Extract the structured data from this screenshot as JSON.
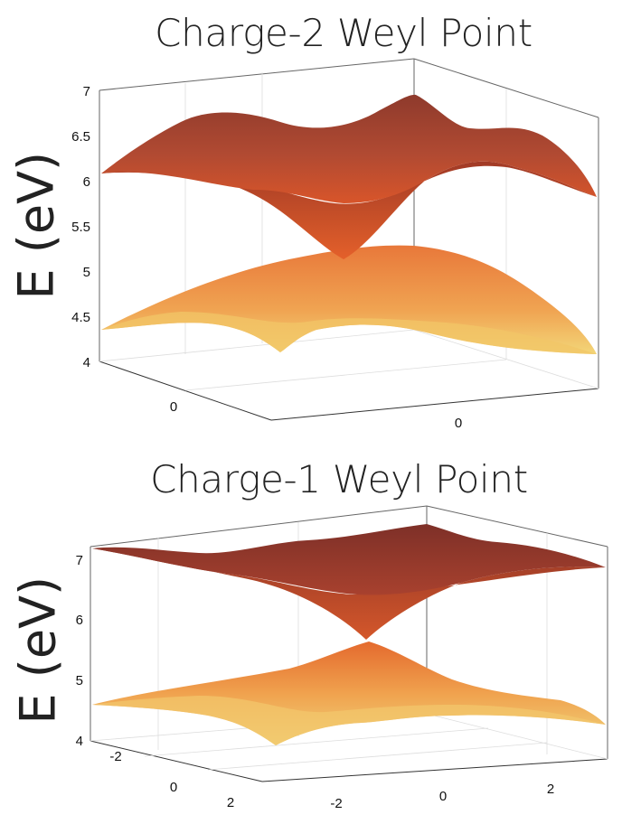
{
  "chart_data": [
    {
      "type": "surface",
      "title": "Charge-2 Weyl Point",
      "zlabel": "E (eV)",
      "zlim": [
        4,
        7
      ],
      "zticks": [
        "7",
        "6.5",
        "6",
        "5.5",
        "5",
        "4.5",
        "4"
      ],
      "xticks": [
        "0"
      ],
      "yticks": [
        "0"
      ],
      "grid": true,
      "series": [
        {
          "band": "upper",
          "color_top": "#8e3a2c",
          "color_bottom": "#d8552a"
        },
        {
          "band": "lower",
          "color_top": "#e8783a",
          "color_bottom": "#f3d678"
        }
      ],
      "node_energy": 5.15
    },
    {
      "type": "surface",
      "title": "Charge-1 Weyl Point",
      "zlabel": "E (eV)",
      "zlim": [
        4,
        7.3
      ],
      "zticks": [
        "7",
        "6",
        "5",
        "4"
      ],
      "xticks": [
        "-2",
        "0",
        "2"
      ],
      "yticks": [
        "-2",
        "0",
        "2"
      ],
      "grid": true,
      "series": [
        {
          "band": "upper",
          "color_top": "#7e3028",
          "color_bottom": "#c34a2c"
        },
        {
          "band": "lower",
          "color_top": "#e46a2e",
          "color_bottom": "#f1d37a"
        }
      ],
      "node_energy": 5.6
    }
  ]
}
